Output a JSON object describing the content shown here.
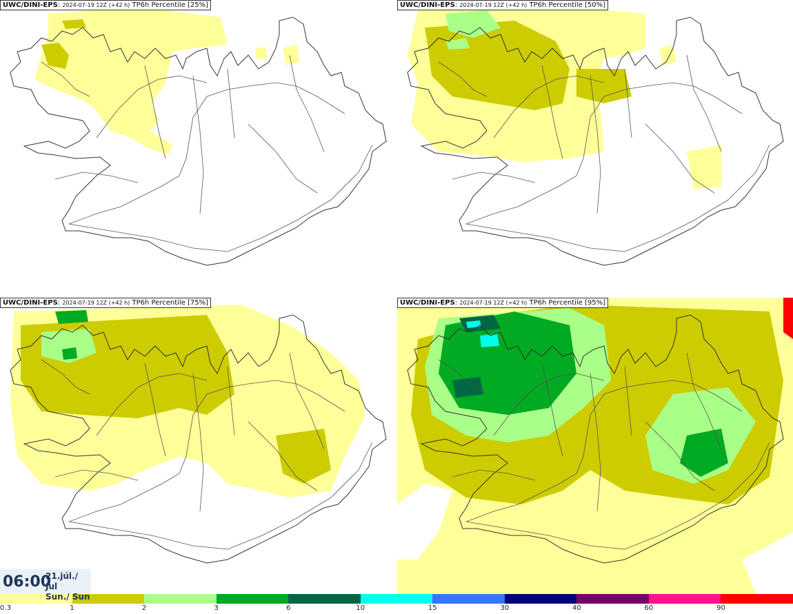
{
  "panels": [
    {
      "model": "UWC/DINI-EPS",
      "run": "2024-07-19 12Z (+42 h)",
      "field": "TP6h Percentile [25%]"
    },
    {
      "model": "UWC/DINI-EPS",
      "run": "2024-07-19 12Z (+42 h)",
      "field": "TP6h Percentile [50%]"
    },
    {
      "model": "UWC/DINI-EPS",
      "run": "2024-07-19 12Z (+42 h)",
      "field": "TP6h Percentile [75%]"
    },
    {
      "model": "UWC/DINI-EPS",
      "run": "2024-07-19 12Z (+42 h)",
      "field": "TP6h Percentile [95%]"
    }
  ],
  "valid_time": {
    "clock": "06:00",
    "date_line1": "21.júl./ Jul",
    "date_line2": "Sun./ Sun"
  },
  "colorbar": {
    "colors": [
      "#ffff99",
      "#cccc00",
      "#aaff88",
      "#00aa22",
      "#006644",
      "#00ffee",
      "#3377ff",
      "#000077",
      "#770066",
      "#ff1188",
      "#ff0000"
    ],
    "labels": [
      "0.3",
      "1",
      "2",
      "3",
      "6",
      "10",
      "15",
      "30",
      "40",
      "60",
      "90"
    ]
  }
}
